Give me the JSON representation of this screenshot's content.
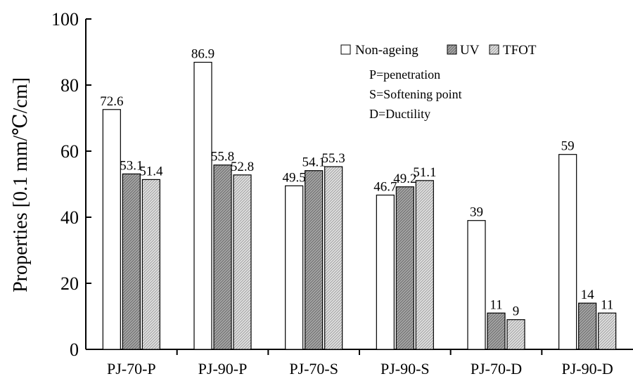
{
  "chart_data": {
    "type": "bar",
    "title": "",
    "xlabel": "",
    "ylabel": "Properties [0.1 mm/℃/cm]",
    "ylim": [
      0,
      100
    ],
    "yticks": [
      0,
      20,
      40,
      60,
      80,
      100
    ],
    "categories": [
      "PJ-70-P",
      "PJ-90-P",
      "PJ-70-S",
      "PJ-90-S",
      "PJ-70-D",
      "PJ-90-D"
    ],
    "series": [
      {
        "name": "Non-ageing",
        "values": [
          72.6,
          86.9,
          49.5,
          46.7,
          39,
          59
        ],
        "labels": [
          "72.6",
          "86.9",
          "49.5",
          "46.7",
          "39",
          "59"
        ],
        "fill": "#ffffff"
      },
      {
        "name": "UV",
        "values": [
          53.1,
          55.8,
          54.1,
          49.2,
          11,
          14
        ],
        "labels": [
          "53.1",
          "55.8",
          "54.1",
          "49.2",
          "11",
          "14"
        ],
        "fill": "#9a9a9a"
      },
      {
        "name": "TFOT",
        "values": [
          51.4,
          52.8,
          55.3,
          51.1,
          9,
          11
        ],
        "labels": [
          "51.4",
          "52.8",
          "55.3",
          "51.1",
          "9",
          "11"
        ],
        "fill": "#d6d6d6"
      }
    ],
    "legend_position": "top-right",
    "notes": [
      "P=penetration",
      "S=Softening point",
      "D=Ductility"
    ],
    "grid": false
  }
}
